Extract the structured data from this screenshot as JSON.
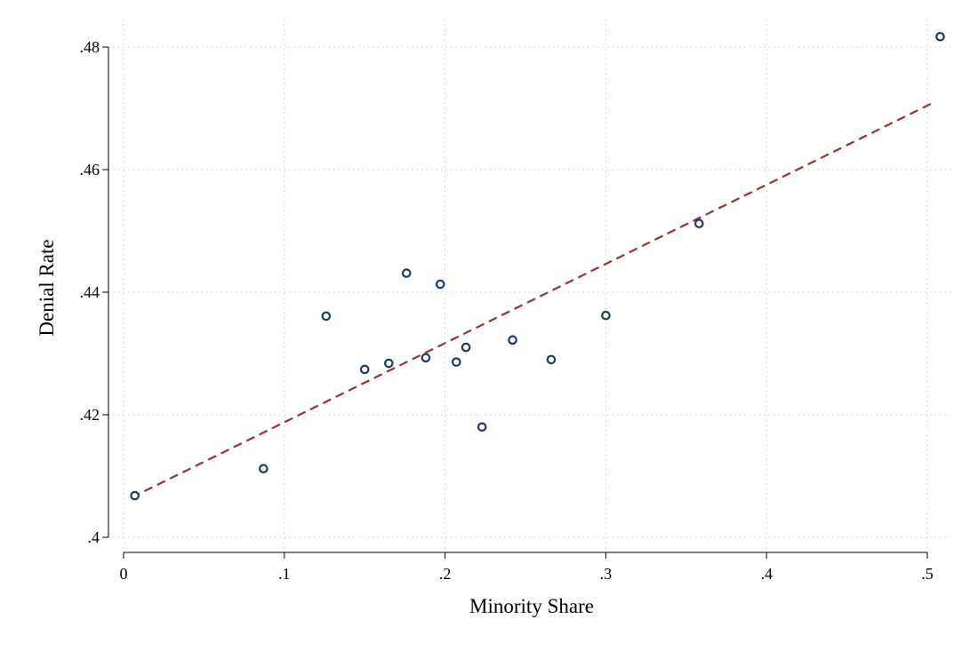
{
  "chart_data": {
    "type": "scatter",
    "title": "",
    "xlabel": "Minority Share",
    "ylabel": "Denial Rate",
    "xlim": [
      0,
      0.51
    ],
    "ylim": [
      0.4,
      0.48
    ],
    "x_ticks": [
      0,
      0.1,
      0.2,
      0.3,
      0.4,
      0.5
    ],
    "x_tick_labels": [
      "0",
      ".1",
      ".2",
      ".3",
      ".4",
      ".5"
    ],
    "y_ticks": [
      0.4,
      0.42,
      0.44,
      0.46,
      0.48
    ],
    "y_tick_labels": [
      ".4",
      ".42",
      ".44",
      ".46",
      ".48"
    ],
    "grid": true,
    "legend": "none",
    "series": [
      {
        "type": "scatter",
        "marker": "hollow-circle",
        "color": "#1a3e5c",
        "points": [
          {
            "x": 0.007,
            "y": 0.4068
          },
          {
            "x": 0.087,
            "y": 0.4112
          },
          {
            "x": 0.126,
            "y": 0.4361
          },
          {
            "x": 0.15,
            "y": 0.4274
          },
          {
            "x": 0.165,
            "y": 0.4284
          },
          {
            "x": 0.176,
            "y": 0.4431
          },
          {
            "x": 0.188,
            "y": 0.4293
          },
          {
            "x": 0.197,
            "y": 0.4413
          },
          {
            "x": 0.207,
            "y": 0.4286
          },
          {
            "x": 0.213,
            "y": 0.431
          },
          {
            "x": 0.223,
            "y": 0.418
          },
          {
            "x": 0.242,
            "y": 0.4322
          },
          {
            "x": 0.266,
            "y": 0.429
          },
          {
            "x": 0.3,
            "y": 0.4362
          },
          {
            "x": 0.358,
            "y": 0.4512
          },
          {
            "x": 0.508,
            "y": 0.4817
          }
        ]
      },
      {
        "type": "line",
        "style": "dashed",
        "color": "#9b2f33",
        "points": [
          {
            "x": 0.005,
            "y": 0.4065
          },
          {
            "x": 0.505,
            "y": 0.4711
          }
        ]
      }
    ]
  }
}
